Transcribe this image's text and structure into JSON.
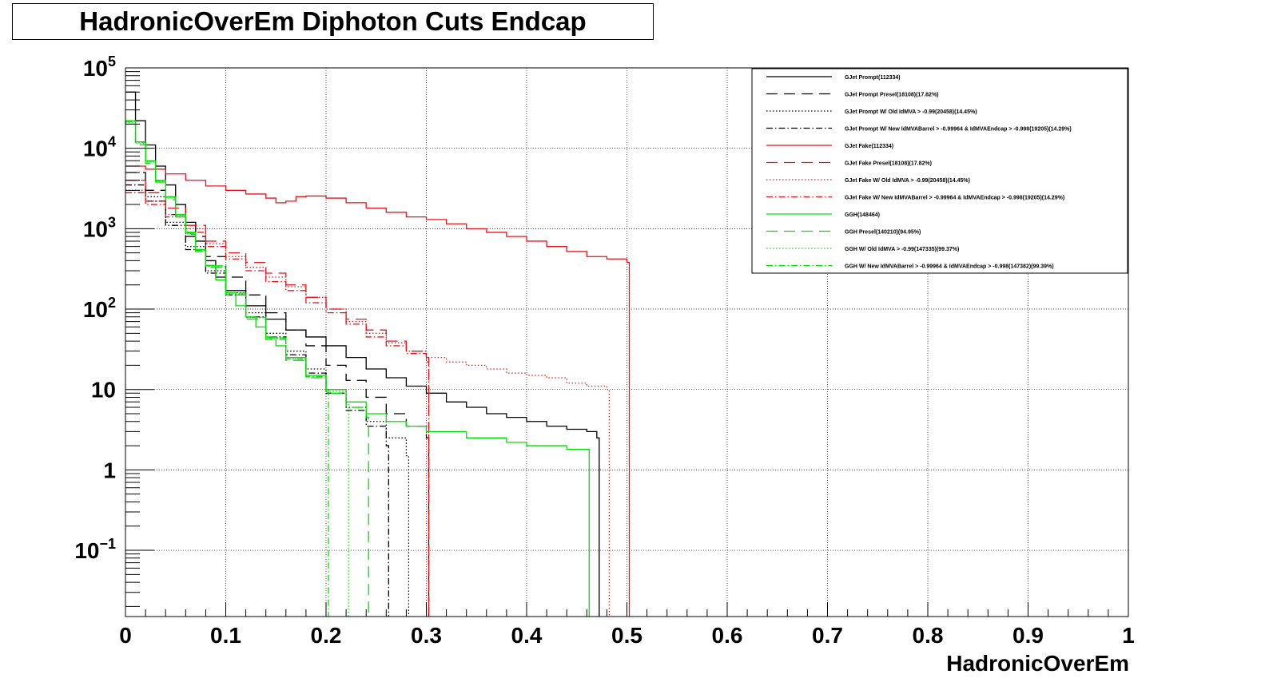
{
  "chart_data": {
    "type": "line",
    "title": "HadronicOverEm Diphoton Cuts Endcap",
    "xlabel": "HadronicOverEm",
    "ylabel": "",
    "xlim": [
      0,
      1
    ],
    "ylim": [
      0.015,
      100000
    ],
    "ylog": true,
    "grid": true,
    "legend_position": "top-right",
    "x_ticks": [
      "0",
      "0.1",
      "0.2",
      "0.3",
      "0.4",
      "0.5",
      "0.6",
      "0.7",
      "0.8",
      "0.9",
      "1"
    ],
    "y_ticks": [
      {
        "value": 0.1,
        "base": "10",
        "exp": "−1"
      },
      {
        "value": 1,
        "base": "1",
        "exp": ""
      },
      {
        "value": 10,
        "base": "10",
        "exp": ""
      },
      {
        "value": 100,
        "base": "10",
        "exp": "2"
      },
      {
        "value": 1000,
        "base": "10",
        "exp": "3"
      },
      {
        "value": 10000,
        "base": "10",
        "exp": "4"
      },
      {
        "value": 100000,
        "base": "10",
        "exp": "5"
      }
    ],
    "series": [
      {
        "name": "GJet Prompt(112334)",
        "color": "#000000",
        "dash": "solid",
        "points": [
          [
            0,
            50000
          ],
          [
            0.01,
            22000
          ],
          [
            0.02,
            11000
          ],
          [
            0.03,
            6000
          ],
          [
            0.04,
            3500
          ],
          [
            0.05,
            2000
          ],
          [
            0.06,
            1200
          ],
          [
            0.07,
            700
          ],
          [
            0.08,
            400
          ],
          [
            0.09,
            250
          ],
          [
            0.1,
            170
          ],
          [
            0.12,
            110
          ],
          [
            0.14,
            75
          ],
          [
            0.16,
            55
          ],
          [
            0.18,
            45
          ],
          [
            0.2,
            35
          ],
          [
            0.22,
            25
          ],
          [
            0.24,
            18
          ],
          [
            0.26,
            14
          ],
          [
            0.28,
            11
          ],
          [
            0.3,
            9
          ],
          [
            0.32,
            7
          ],
          [
            0.34,
            6
          ],
          [
            0.36,
            5
          ],
          [
            0.38,
            4.5
          ],
          [
            0.4,
            4
          ],
          [
            0.42,
            3.5
          ],
          [
            0.44,
            3.2
          ],
          [
            0.46,
            3
          ],
          [
            0.47,
            2.5
          ]
        ]
      },
      {
        "name": "GJet Prompt Presel(18108)(17.82%)",
        "color": "#000000",
        "dash": "long",
        "points": [
          [
            0,
            5000
          ],
          [
            0.02,
            3000
          ],
          [
            0.04,
            1500
          ],
          [
            0.06,
            800
          ],
          [
            0.08,
            450
          ],
          [
            0.1,
            250
          ],
          [
            0.12,
            150
          ],
          [
            0.14,
            90
          ],
          [
            0.16,
            55
          ],
          [
            0.18,
            35
          ],
          [
            0.2,
            20
          ],
          [
            0.22,
            13
          ],
          [
            0.24,
            8
          ],
          [
            0.26,
            5
          ],
          [
            0.28,
            3.5
          ],
          [
            0.3,
            2.5
          ]
        ]
      },
      {
        "name": "GJet Prompt W/ Old IdMVA > -0.99(20458)(14.45%)",
        "color": "#000000",
        "dash": "dot",
        "points": [
          [
            0,
            4000
          ],
          [
            0.02,
            2500
          ],
          [
            0.04,
            1200
          ],
          [
            0.06,
            600
          ],
          [
            0.08,
            300
          ],
          [
            0.1,
            160
          ],
          [
            0.12,
            90
          ],
          [
            0.14,
            50
          ],
          [
            0.16,
            30
          ],
          [
            0.18,
            18
          ],
          [
            0.2,
            10
          ],
          [
            0.22,
            6
          ],
          [
            0.24,
            4
          ],
          [
            0.26,
            2.5
          ],
          [
            0.28,
            1.5
          ]
        ]
      },
      {
        "name": "GJet Prompt W/ New IdMVABarrel > -0.99964 & IdMVAEndcap > -0.998(19205)(14.29%)",
        "color": "#000000",
        "dash": "dashdot",
        "points": [
          [
            0,
            3500
          ],
          [
            0.02,
            2200
          ],
          [
            0.04,
            1100
          ],
          [
            0.06,
            550
          ],
          [
            0.08,
            280
          ],
          [
            0.1,
            150
          ],
          [
            0.12,
            80
          ],
          [
            0.14,
            45
          ],
          [
            0.16,
            27
          ],
          [
            0.18,
            16
          ],
          [
            0.2,
            9
          ],
          [
            0.22,
            5.5
          ],
          [
            0.24,
            3.5
          ],
          [
            0.26,
            2
          ]
        ]
      },
      {
        "name": "GJet Fake(112334)",
        "color": "#e8141c",
        "dash": "solid",
        "points": [
          [
            0,
            6000
          ],
          [
            0.02,
            5500
          ],
          [
            0.04,
            4800
          ],
          [
            0.06,
            4000
          ],
          [
            0.08,
            3400
          ],
          [
            0.1,
            3000
          ],
          [
            0.12,
            2700
          ],
          [
            0.14,
            2400
          ],
          [
            0.15,
            2100
          ],
          [
            0.16,
            2200
          ],
          [
            0.17,
            2500
          ],
          [
            0.18,
            2550
          ],
          [
            0.2,
            2400
          ],
          [
            0.22,
            2100
          ],
          [
            0.24,
            1800
          ],
          [
            0.26,
            1600
          ],
          [
            0.28,
            1400
          ],
          [
            0.3,
            1300
          ],
          [
            0.32,
            1150
          ],
          [
            0.34,
            1000
          ],
          [
            0.36,
            900
          ],
          [
            0.38,
            800
          ],
          [
            0.4,
            700
          ],
          [
            0.42,
            600
          ],
          [
            0.44,
            520
          ],
          [
            0.46,
            450
          ],
          [
            0.48,
            420
          ],
          [
            0.5,
            380
          ]
        ]
      },
      {
        "name": "GJet Fake Presel(18108)(17.82%)",
        "color": "#e8141c",
        "dash": "long",
        "points": [
          [
            0,
            4000
          ],
          [
            0.02,
            2800
          ],
          [
            0.04,
            1800
          ],
          [
            0.06,
            1100
          ],
          [
            0.08,
            700
          ],
          [
            0.1,
            500
          ],
          [
            0.12,
            380
          ],
          [
            0.14,
            280
          ],
          [
            0.16,
            200
          ],
          [
            0.18,
            140
          ],
          [
            0.2,
            100
          ],
          [
            0.22,
            75
          ],
          [
            0.24,
            55
          ],
          [
            0.26,
            40
          ],
          [
            0.28,
            30
          ],
          [
            0.3,
            25
          ]
        ]
      },
      {
        "name": "GJet Fake W/ Old IdMVA > -0.99(20458)(14.45%)",
        "color": "#e8141c",
        "dash": "dot",
        "points": [
          [
            0,
            3000
          ],
          [
            0.02,
            2200
          ],
          [
            0.04,
            1500
          ],
          [
            0.06,
            1000
          ],
          [
            0.08,
            650
          ],
          [
            0.1,
            450
          ],
          [
            0.12,
            330
          ],
          [
            0.14,
            250
          ],
          [
            0.16,
            190
          ],
          [
            0.18,
            140
          ],
          [
            0.2,
            100
          ],
          [
            0.22,
            70
          ],
          [
            0.24,
            50
          ],
          [
            0.26,
            38
          ],
          [
            0.28,
            30
          ],
          [
            0.3,
            25
          ],
          [
            0.32,
            22
          ],
          [
            0.34,
            20
          ],
          [
            0.36,
            18
          ],
          [
            0.38,
            16
          ],
          [
            0.4,
            15
          ],
          [
            0.42,
            14
          ],
          [
            0.44,
            12
          ],
          [
            0.46,
            11
          ],
          [
            0.48,
            10
          ]
        ]
      },
      {
        "name": "GJet Fake W/ New IdMVABarrel > -0.99964 & IdMVAEndcap > -0.998(19205)(14.29%)",
        "color": "#e8141c",
        "dash": "dashdot",
        "points": [
          [
            0,
            2800
          ],
          [
            0.02,
            2000
          ],
          [
            0.04,
            1400
          ],
          [
            0.06,
            900
          ],
          [
            0.08,
            600
          ],
          [
            0.1,
            420
          ],
          [
            0.12,
            300
          ],
          [
            0.14,
            220
          ],
          [
            0.16,
            170
          ],
          [
            0.18,
            120
          ],
          [
            0.2,
            90
          ],
          [
            0.22,
            65
          ],
          [
            0.24,
            45
          ],
          [
            0.26,
            35
          ],
          [
            0.28,
            28
          ],
          [
            0.3,
            22
          ]
        ]
      },
      {
        "name": "GGH(148464)",
        "color": "#00e000",
        "dash": "solid",
        "points": [
          [
            0,
            22000
          ],
          [
            0.01,
            12000
          ],
          [
            0.02,
            7000
          ],
          [
            0.03,
            4000
          ],
          [
            0.04,
            2500
          ],
          [
            0.05,
            1500
          ],
          [
            0.06,
            900
          ],
          [
            0.07,
            550
          ],
          [
            0.08,
            350
          ],
          [
            0.09,
            230
          ],
          [
            0.1,
            160
          ],
          [
            0.11,
            110
          ],
          [
            0.12,
            80
          ],
          [
            0.13,
            60
          ],
          [
            0.14,
            45
          ],
          [
            0.15,
            35
          ],
          [
            0.16,
            25
          ],
          [
            0.18,
            15
          ],
          [
            0.2,
            10
          ],
          [
            0.22,
            7
          ],
          [
            0.24,
            5
          ],
          [
            0.26,
            4
          ],
          [
            0.28,
            3.5
          ],
          [
            0.3,
            3
          ],
          [
            0.32,
            3
          ],
          [
            0.34,
            2.5
          ],
          [
            0.36,
            2.5
          ],
          [
            0.38,
            2.2
          ],
          [
            0.4,
            2
          ],
          [
            0.42,
            2
          ],
          [
            0.44,
            1.8
          ],
          [
            0.46,
            1.8
          ]
        ]
      },
      {
        "name": "GGH Presel(140210)(94.95%)",
        "color": "#00e000",
        "dash": "long",
        "points": [
          [
            0,
            20000
          ],
          [
            0.01,
            11000
          ],
          [
            0.02,
            6500
          ],
          [
            0.03,
            3800
          ],
          [
            0.04,
            2300
          ],
          [
            0.05,
            1400
          ],
          [
            0.06,
            850
          ],
          [
            0.07,
            520
          ],
          [
            0.08,
            330
          ],
          [
            0.1,
            150
          ],
          [
            0.12,
            75
          ],
          [
            0.14,
            42
          ],
          [
            0.16,
            23
          ],
          [
            0.18,
            14
          ],
          [
            0.2,
            9
          ],
          [
            0.22,
            6
          ],
          [
            0.24,
            4.5
          ]
        ]
      },
      {
        "name": "GGH W/ Old IdMVA > -0.99(147335)(99.37%)",
        "color": "#00e000",
        "dash": "dot",
        "points": [
          [
            0,
            21000
          ],
          [
            0.01,
            11500
          ],
          [
            0.02,
            6800
          ],
          [
            0.03,
            3900
          ],
          [
            0.04,
            2400
          ],
          [
            0.05,
            1450
          ],
          [
            0.06,
            870
          ],
          [
            0.07,
            530
          ],
          [
            0.08,
            340
          ],
          [
            0.1,
            155
          ],
          [
            0.12,
            78
          ],
          [
            0.14,
            43
          ],
          [
            0.16,
            24
          ],
          [
            0.18,
            14
          ],
          [
            0.2,
            9.5
          ],
          [
            0.22,
            6.5
          ]
        ]
      },
      {
        "name": "GGH W/ New IdMVABarrel > -0.99964 & IdMVAEndcap > -0.998(147382)(99.39%)",
        "color": "#00e000",
        "dash": "dashdot",
        "points": [
          [
            0,
            21500
          ],
          [
            0.01,
            11800
          ],
          [
            0.02,
            6900
          ],
          [
            0.03,
            3950
          ],
          [
            0.04,
            2450
          ],
          [
            0.05,
            1480
          ],
          [
            0.06,
            880
          ],
          [
            0.07,
            540
          ],
          [
            0.08,
            345
          ],
          [
            0.1,
            158
          ],
          [
            0.12,
            79
          ],
          [
            0.14,
            44
          ],
          [
            0.16,
            24
          ],
          [
            0.18,
            14.5
          ],
          [
            0.2,
            9.8
          ]
        ]
      }
    ]
  }
}
